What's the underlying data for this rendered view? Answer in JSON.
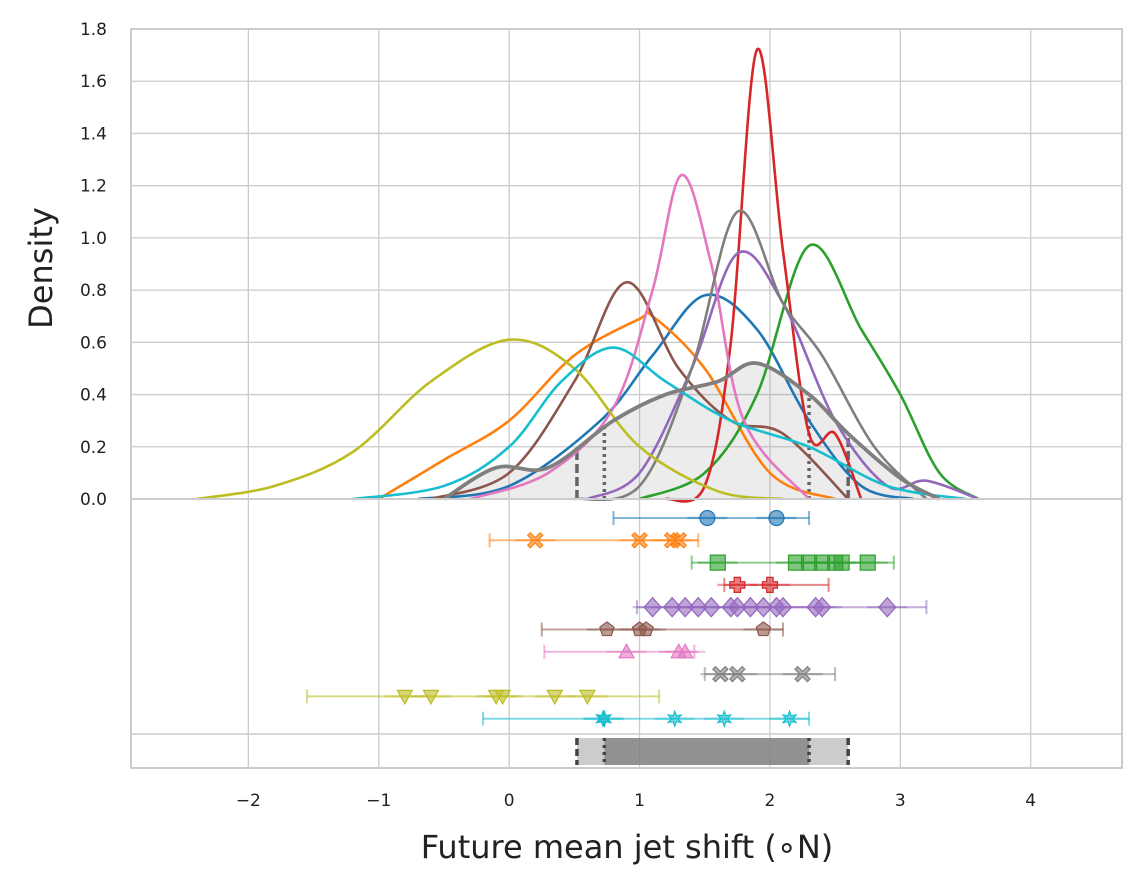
{
  "chart_data": {
    "type": "line",
    "xlabel": "Future mean jet shift (∘N)",
    "ylabel": "Density",
    "xlim": [
      -2.9,
      4.7
    ],
    "ylim": [
      0,
      1.8
    ],
    "x_ticks": [
      -2,
      -1,
      0,
      1,
      2,
      3,
      4
    ],
    "x_tick_labels": [
      "−2",
      "−1",
      "0",
      "1",
      "2",
      "3",
      "4"
    ],
    "y_ticks": [
      0,
      0.2,
      0.4,
      0.6,
      0.8,
      1.0,
      1.2,
      1.4,
      1.6,
      1.8
    ],
    "y_tick_labels": [
      "0.0",
      "0.2",
      "0.4",
      "0.6",
      "0.8",
      "1.0",
      "1.2",
      "1.4",
      "1.6",
      "1.8"
    ],
    "grid": true,
    "density_series": [
      {
        "color": "#1f77b4",
        "x": [
          -0.7,
          0.0,
          0.7,
          1.1,
          1.5,
          1.9,
          2.3,
          2.7,
          3.1
        ],
        "y": [
          0.0,
          0.05,
          0.3,
          0.55,
          0.78,
          0.65,
          0.3,
          0.05,
          0.0
        ]
      },
      {
        "color": "#ff7f0e",
        "x": [
          -1.0,
          -0.5,
          0.0,
          0.5,
          1.0,
          1.1,
          1.5,
          2.0,
          2.5
        ],
        "y": [
          0.0,
          0.15,
          0.3,
          0.55,
          0.69,
          0.7,
          0.5,
          0.1,
          0.0
        ]
      },
      {
        "color": "#2ca02c",
        "x": [
          1.0,
          1.5,
          1.9,
          2.3,
          2.7,
          3.0,
          3.3,
          3.6
        ],
        "y": [
          0.0,
          0.1,
          0.4,
          0.97,
          0.65,
          0.4,
          0.1,
          0.0
        ]
      },
      {
        "color": "#d62728",
        "x": [
          1.2,
          1.5,
          1.7,
          1.9,
          2.1,
          2.3,
          2.5,
          2.7
        ],
        "y": [
          0.0,
          0.05,
          0.6,
          1.72,
          0.95,
          0.25,
          0.25,
          0.0
        ]
      },
      {
        "color": "#9467bd",
        "x": [
          0.6,
          1.0,
          1.4,
          1.75,
          2.1,
          2.5,
          2.9,
          3.2,
          3.6
        ],
        "y": [
          0.0,
          0.1,
          0.5,
          0.94,
          0.75,
          0.3,
          0.05,
          0.07,
          0.0
        ]
      },
      {
        "color": "#8c564b",
        "x": [
          -0.6,
          0.0,
          0.5,
          0.9,
          1.3,
          1.7,
          2.1,
          2.6
        ],
        "y": [
          0.0,
          0.1,
          0.45,
          0.83,
          0.5,
          0.3,
          0.25,
          0.0
        ]
      },
      {
        "color": "#e377c2",
        "x": [
          -0.3,
          0.3,
          0.8,
          1.1,
          1.32,
          1.55,
          1.8,
          2.3
        ],
        "y": [
          0.0,
          0.1,
          0.35,
          0.8,
          1.24,
          0.9,
          0.3,
          0.0
        ]
      },
      {
        "color": "#7f7f7f",
        "x": [
          0.5,
          1.0,
          1.4,
          1.75,
          2.1,
          2.4,
          2.8,
          3.2
        ],
        "y": [
          0.0,
          0.05,
          0.5,
          1.1,
          0.75,
          0.55,
          0.2,
          0.0
        ]
      },
      {
        "color": "#bcbd22",
        "x": [
          -2.4,
          -1.8,
          -1.2,
          -0.6,
          0.0,
          0.5,
          1.0,
          1.6,
          2.1
        ],
        "y": [
          0.0,
          0.05,
          0.18,
          0.45,
          0.61,
          0.5,
          0.2,
          0.03,
          0.0
        ]
      },
      {
        "color": "#17becf",
        "x": [
          -1.2,
          -0.5,
          0.0,
          0.4,
          0.8,
          1.2,
          1.7,
          2.3,
          2.9,
          3.5
        ],
        "y": [
          0.0,
          0.05,
          0.2,
          0.45,
          0.58,
          0.45,
          0.3,
          0.2,
          0.05,
          0.0
        ]
      }
    ],
    "multi_model": {
      "color": "#7f7f7f",
      "x": [
        -0.5,
        -0.1,
        0.3,
        0.8,
        1.2,
        1.6,
        1.9,
        2.3,
        2.6,
        3.0,
        3.3
      ],
      "y": [
        0.0,
        0.12,
        0.12,
        0.3,
        0.4,
        0.45,
        0.52,
        0.4,
        0.25,
        0.08,
        0.0
      ],
      "vlines_dashed": [
        0.52,
        2.6
      ],
      "vlines_dotted": [
        0.73,
        2.3
      ]
    },
    "member_rows": [
      {
        "color": "#1f77b4",
        "marker": "circle",
        "values": [
          1.52,
          2.05
        ],
        "err": [
          [
            0.8,
            2.3
          ]
        ]
      },
      {
        "color": "#ff7f0e",
        "marker": "x",
        "values": [
          0.2,
          1.0,
          1.25,
          1.3
        ],
        "err": [
          [
            -0.15,
            1.45
          ]
        ]
      },
      {
        "color": "#2ca02c",
        "marker": "square",
        "values": [
          1.6,
          2.2,
          2.3,
          2.4,
          2.5,
          2.55,
          2.75
        ],
        "err": [
          [
            1.4,
            2.95
          ]
        ]
      },
      {
        "color": "#d62728",
        "marker": "plus",
        "values": [
          1.75,
          2.0
        ],
        "err": [
          [
            1.65,
            2.45
          ]
        ]
      },
      {
        "color": "#9467bd",
        "marker": "diamond",
        "values": [
          1.1,
          1.25,
          1.35,
          1.45,
          1.55,
          1.7,
          1.75,
          1.85,
          1.95,
          2.05,
          2.1,
          2.35,
          2.4,
          2.9
        ],
        "err": [
          [
            0.98,
            3.2
          ]
        ]
      },
      {
        "color": "#8c564b",
        "marker": "pentagon",
        "values": [
          0.75,
          1.0,
          1.05,
          1.95
        ],
        "err": [
          [
            0.25,
            2.1
          ]
        ]
      },
      {
        "color": "#e377c2",
        "marker": "triangle-up",
        "values": [
          0.9,
          1.3,
          1.35
        ],
        "err": [
          [
            0.27,
            1.42
          ]
        ]
      },
      {
        "color": "#7f7f7f",
        "marker": "x",
        "values": [
          1.62,
          1.75,
          2.25
        ],
        "err": [
          [
            1.5,
            2.5
          ]
        ]
      },
      {
        "color": "#bcbd22",
        "marker": "triangle-down",
        "values": [
          -0.8,
          -0.6,
          -0.1,
          -0.05,
          0.35,
          0.6
        ],
        "err": [
          [
            -1.55,
            1.15
          ]
        ]
      },
      {
        "color": "#17becf",
        "marker": "star",
        "values": [
          0.72,
          0.73,
          1.27,
          1.65,
          2.15
        ],
        "err": [
          [
            -0.2,
            2.3
          ]
        ]
      }
    ],
    "summary_bar": {
      "color": "#7f7f7f",
      "inner": [
        0.73,
        2.3
      ],
      "outer": [
        0.52,
        2.6
      ]
    }
  }
}
